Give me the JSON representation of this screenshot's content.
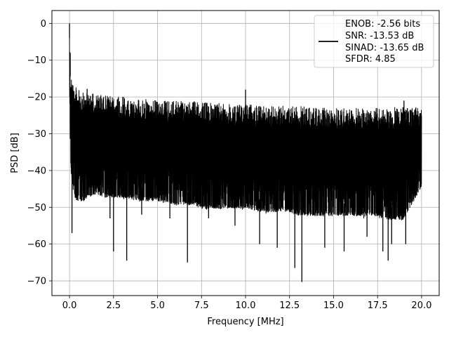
{
  "chart_data": {
    "type": "line",
    "title": "",
    "xlabel": "Frequency [MHz]",
    "ylabel": "PSD [dB]",
    "xlim": [
      -1,
      21
    ],
    "ylim": [
      -74,
      3.5
    ],
    "xticks": [
      0.0,
      2.5,
      5.0,
      7.5,
      10.0,
      12.5,
      15.0,
      17.5,
      20.0
    ],
    "xtick_labels": [
      "0.0",
      "2.5",
      "5.0",
      "7.5",
      "10.0",
      "12.5",
      "15.0",
      "17.5",
      "20.0"
    ],
    "yticks": [
      0,
      -10,
      -20,
      -30,
      -40,
      -50,
      -60,
      -70
    ],
    "ytick_labels": [
      "0",
      "−10",
      "−20",
      "−30",
      "−40",
      "−50",
      "−60",
      "−70"
    ],
    "grid": true,
    "legend_position": "top-right",
    "line_color": "#000000",
    "legend": {
      "lines": [
        "ENOB: -2.56 bits",
        "SNR: -13.53 dB",
        "SINAD: -13.65 dB",
        "SFDR: 4.85"
      ]
    },
    "series": [
      {
        "envelope": {
          "x": [
            0.0,
            0.05,
            0.1,
            0.2,
            0.3,
            0.5,
            0.8,
            1.0,
            1.5,
            2.0,
            2.5,
            3.0,
            4.0,
            5.0,
            6.0,
            7.0,
            7.5,
            8.0,
            9.0,
            10.0,
            11.0,
            12.0,
            12.5,
            13.0,
            14.0,
            15.0,
            16.0,
            17.0,
            17.5,
            18.0,
            19.0,
            20.0
          ],
          "upper": [
            0,
            -13,
            -14,
            -16,
            -17,
            -18,
            -19,
            -19,
            -19,
            -19.5,
            -20,
            -20,
            -20.5,
            -21,
            -21,
            -21,
            -21.5,
            -21.5,
            -22,
            -22,
            -22.5,
            -22.5,
            -22.5,
            -22.5,
            -23,
            -23,
            -23,
            -23,
            -23,
            -23,
            -22.5,
            -23
          ],
          "lower": [
            -18,
            -37,
            -42,
            -46,
            -48,
            -49,
            -49,
            -48,
            -47,
            -48,
            -48,
            -48,
            -49,
            -49,
            -50,
            -50,
            -51,
            -51,
            -51,
            -51,
            -52,
            -52,
            -52,
            -53,
            -53,
            -53,
            -53,
            -53,
            -53,
            -54,
            -54,
            -45
          ]
        },
        "spikes": [
          {
            "x": 0.0,
            "y": 0
          },
          {
            "x": 0.04,
            "y": -8
          },
          {
            "x": 0.15,
            "y": -36
          },
          {
            "x": 0.14,
            "y": -57
          },
          {
            "x": 1.0,
            "y": -17.8
          },
          {
            "x": 2.5,
            "y": -62
          },
          {
            "x": 2.3,
            "y": -53
          },
          {
            "x": 3.25,
            "y": -64.5
          },
          {
            "x": 4.1,
            "y": -52
          },
          {
            "x": 5.7,
            "y": -53
          },
          {
            "x": 6.7,
            "y": -65
          },
          {
            "x": 7.9,
            "y": -53
          },
          {
            "x": 9.4,
            "y": -55
          },
          {
            "x": 10.0,
            "y": -18
          },
          {
            "x": 10.8,
            "y": -60
          },
          {
            "x": 11.8,
            "y": -61
          },
          {
            "x": 12.8,
            "y": -66.5
          },
          {
            "x": 13.2,
            "y": -70.3
          },
          {
            "x": 14.5,
            "y": -61
          },
          {
            "x": 15.6,
            "y": -62
          },
          {
            "x": 16.9,
            "y": -58
          },
          {
            "x": 17.8,
            "y": -62
          },
          {
            "x": 18.1,
            "y": -64.5
          },
          {
            "x": 18.3,
            "y": -60
          },
          {
            "x": 19.1,
            "y": -60
          },
          {
            "x": 19.0,
            "y": -21
          }
        ]
      }
    ]
  }
}
